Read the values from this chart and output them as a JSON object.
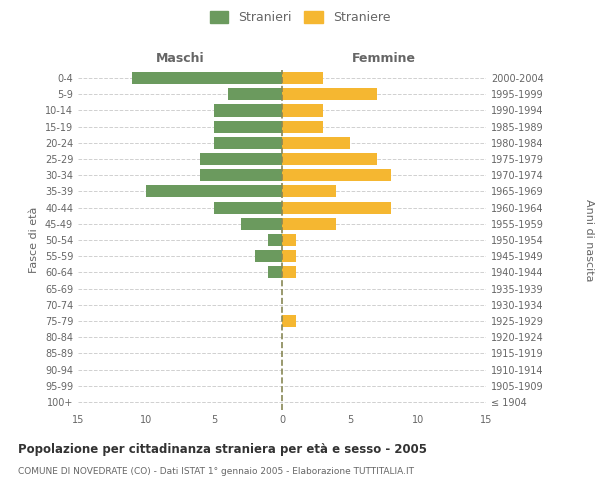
{
  "age_groups": [
    "100+",
    "95-99",
    "90-94",
    "85-89",
    "80-84",
    "75-79",
    "70-74",
    "65-69",
    "60-64",
    "55-59",
    "50-54",
    "45-49",
    "40-44",
    "35-39",
    "30-34",
    "25-29",
    "20-24",
    "15-19",
    "10-14",
    "5-9",
    "0-4"
  ],
  "birth_years": [
    "≤ 1904",
    "1905-1909",
    "1910-1914",
    "1915-1919",
    "1920-1924",
    "1925-1929",
    "1930-1934",
    "1935-1939",
    "1940-1944",
    "1945-1949",
    "1950-1954",
    "1955-1959",
    "1960-1964",
    "1965-1969",
    "1970-1974",
    "1975-1979",
    "1980-1984",
    "1985-1989",
    "1990-1994",
    "1995-1999",
    "2000-2004"
  ],
  "males": [
    0,
    0,
    0,
    0,
    0,
    0,
    0,
    0,
    1,
    2,
    1,
    3,
    5,
    10,
    6,
    6,
    5,
    5,
    5,
    4,
    11
  ],
  "females": [
    0,
    0,
    0,
    0,
    0,
    1,
    0,
    0,
    1,
    1,
    1,
    4,
    8,
    4,
    8,
    7,
    5,
    3,
    3,
    7,
    3
  ],
  "male_color": "#6b9a5e",
  "female_color": "#f5b731",
  "title": "Popolazione per cittadinanza straniera per età e sesso - 2005",
  "subtitle": "COMUNE DI NOVEDRATE (CO) - Dati ISTAT 1° gennaio 2005 - Elaborazione TUTTITALIA.IT",
  "left_label": "Maschi",
  "right_label": "Femmine",
  "ylabel": "Fasce di età",
  "right_ylabel": "Anni di nascita",
  "legend_male": "Stranieri",
  "legend_female": "Straniere",
  "xlim": 15,
  "background_color": "#ffffff",
  "grid_color": "#d0d0d0",
  "text_color": "#666666",
  "dashed_line_color": "#888855"
}
